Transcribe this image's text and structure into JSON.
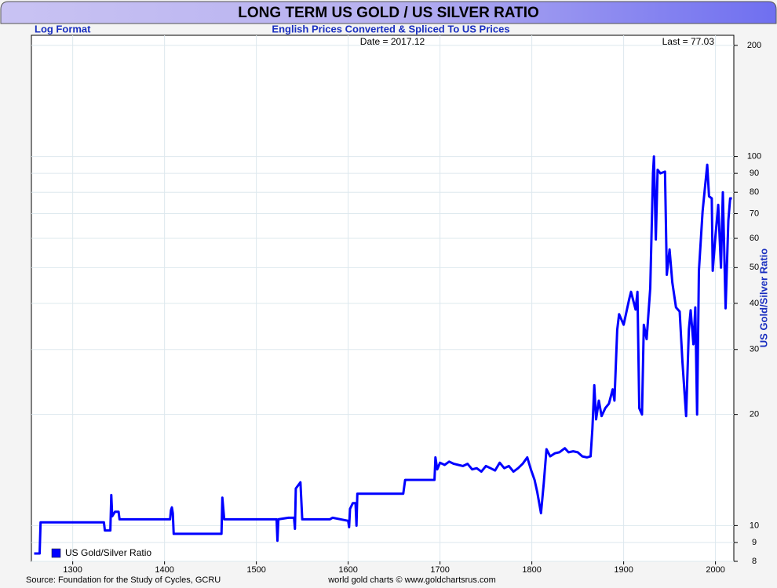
{
  "chart_data": {
    "type": "line",
    "title": "LONG TERM US GOLD / US SILVER RATIO",
    "scale_note": "Log Format",
    "subtitle": "English Prices Converted & Spliced To US Prices",
    "date_label": "Date = 2017.12",
    "last_label": "Last = 77.03",
    "y_label": "US Gold/Silver Ratio",
    "source": "Source: Foundation for the Study of Cycles, GCRU",
    "credit": "world gold charts © www.goldchartsrus.com",
    "log_scale": true,
    "grid": true,
    "legend": "lower left",
    "xlim": [
      1255,
      2020
    ],
    "xticks": [
      1300,
      1400,
      1500,
      1600,
      1700,
      1800,
      1900,
      2000
    ],
    "ylim": [
      8,
      213
    ],
    "yticks": [
      8,
      9,
      10,
      20,
      30,
      40,
      50,
      60,
      70,
      80,
      90,
      100,
      200
    ],
    "x": [
      1258,
      1264,
      1265,
      1334,
      1335,
      1341,
      1342,
      1343,
      1346,
      1350,
      1351,
      1406,
      1407,
      1408,
      1409,
      1410,
      1462,
      1463,
      1465,
      1522,
      1523,
      1524,
      1535,
      1541,
      1542,
      1543,
      1548,
      1550,
      1580,
      1583,
      1600,
      1601,
      1602,
      1605,
      1608,
      1609,
      1610,
      1660,
      1662,
      1694,
      1695,
      1697,
      1700,
      1705,
      1710,
      1715,
      1720,
      1725,
      1730,
      1735,
      1740,
      1745,
      1750,
      1755,
      1760,
      1765,
      1770,
      1775,
      1780,
      1785,
      1790,
      1795,
      1799,
      1803,
      1806,
      1810,
      1813,
      1816,
      1820,
      1825,
      1830,
      1836,
      1840,
      1845,
      1850,
      1855,
      1860,
      1864,
      1866,
      1868,
      1870,
      1873,
      1876,
      1880,
      1884,
      1888,
      1890,
      1893,
      1895,
      1900,
      1906,
      1908,
      1913,
      1915,
      1917,
      1920,
      1922,
      1925,
      1929,
      1932,
      1933,
      1935,
      1937,
      1940,
      1945,
      1947,
      1950,
      1953,
      1957,
      1961,
      1964,
      1968,
      1971,
      1973,
      1976,
      1978,
      1980,
      1982,
      1986,
      1991,
      1993,
      1996,
      1997,
      2000,
      2003,
      2006,
      2008,
      2011,
      2014,
      2016,
      2017.92
    ],
    "series": [
      {
        "name": "US Gold/Silver Ratio",
        "color": "#0000ff",
        "values": [
          8.4,
          8.4,
          10.2,
          10.2,
          9.7,
          9.7,
          12.1,
          10.6,
          10.9,
          10.9,
          10.4,
          10.4,
          11.0,
          11.2,
          10.8,
          9.5,
          9.5,
          11.9,
          10.4,
          10.4,
          9.1,
          10.4,
          10.5,
          10.5,
          9.8,
          12.6,
          13.1,
          10.4,
          10.4,
          10.5,
          10.3,
          9.9,
          11.1,
          11.5,
          11.5,
          10.0,
          12.2,
          12.2,
          13.3,
          13.3,
          15.3,
          14.2,
          14.8,
          14.6,
          14.9,
          14.7,
          14.6,
          14.5,
          14.7,
          14.2,
          14.3,
          14.0,
          14.5,
          14.3,
          14.1,
          14.8,
          14.3,
          14.5,
          14.0,
          14.3,
          14.7,
          15.3,
          14.2,
          13.3,
          12.3,
          10.8,
          13.0,
          16.1,
          15.4,
          15.7,
          15.8,
          16.2,
          15.8,
          15.9,
          15.8,
          15.4,
          15.3,
          15.4,
          18.3,
          24.0,
          19.4,
          21.8,
          19.8,
          20.8,
          21.4,
          23.4,
          21.8,
          33.9,
          37.4,
          35.0,
          41.0,
          43.0,
          38.5,
          43.0,
          20.8,
          20.0,
          35.0,
          32.0,
          44.0,
          90.0,
          100.0,
          59.6,
          92.0,
          90.0,
          91.0,
          47.8,
          56.0,
          45.6,
          39.0,
          38.0,
          27.8,
          19.8,
          34.0,
          38.3,
          31.0,
          39.0,
          20.0,
          49.0,
          71.0,
          95.0,
          78.0,
          77.0,
          49.0,
          61.0,
          74.0,
          50.0,
          80.0,
          38.8,
          67.0,
          77.0,
          77.03
        ]
      }
    ]
  }
}
